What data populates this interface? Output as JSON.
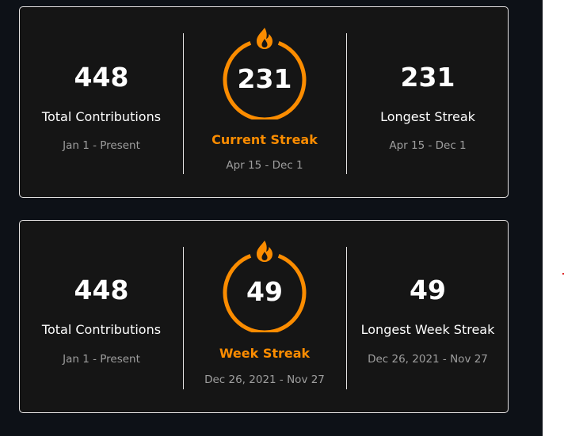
{
  "accent_color": "#fb8c00",
  "cards": [
    {
      "total": {
        "value": "448",
        "label": "Total Contributions",
        "range": "Jan 1 - Present"
      },
      "current": {
        "value": "231",
        "label": "Current Streak",
        "range": "Apr 15 - Dec 1",
        "icon": "fire-icon"
      },
      "longest": {
        "value": "231",
        "label": "Longest Streak",
        "range": "Apr 15 - Dec 1"
      }
    },
    {
      "total": {
        "value": "448",
        "label": "Total Contributions",
        "range": "Jan 1 - Present"
      },
      "current": {
        "value": "49",
        "label": "Week Streak",
        "range": "Dec 26, 2021 - Nov 27",
        "icon": "fire-icon"
      },
      "longest": {
        "value": "49",
        "label": "Longest Week Streak",
        "range": "Dec 26, 2021 - Nov 27"
      }
    }
  ]
}
